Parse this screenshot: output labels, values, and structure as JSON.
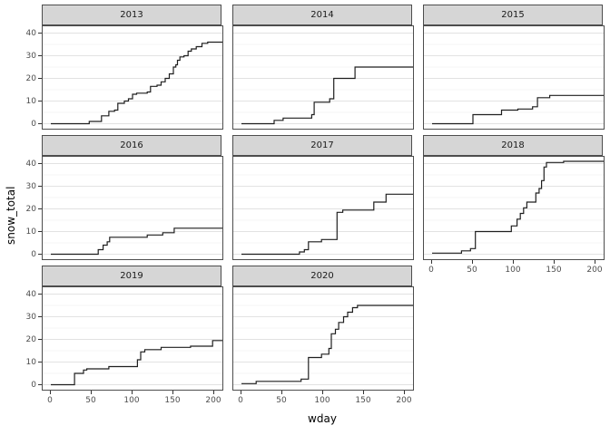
{
  "figure": {
    "x_axis_title": "wday",
    "y_axis_title": "snow_total",
    "colors": {
      "line": "#1f1f1f",
      "strip_background": "#d6d6d6",
      "panel_border": "#4d4d4d",
      "grid_major": "#e2e2e2",
      "grid_minor": "#f2f2f2",
      "tick_label": "#4d4d4d",
      "background": "#ffffff"
    }
  },
  "chart_data": {
    "type": "line",
    "subtype": "step-after",
    "title": "",
    "xlabel": "wday",
    "ylabel": "snow_total",
    "x_ticks": [
      0,
      50,
      100,
      150,
      200
    ],
    "y_ticks": [
      0,
      10,
      20,
      30,
      40
    ],
    "y_minor_ticks": [
      5,
      15,
      25,
      35
    ],
    "x_range": [
      -10,
      220
    ],
    "y_range": [
      -2.2,
      43
    ],
    "grid": "horizontal-only",
    "legend_position": "none",
    "facet_layout": {
      "ncol": 3,
      "nrow": 3
    },
    "facets": [
      {
        "label": "2013",
        "row": 0,
        "col": 0,
        "points": [
          [
            0,
            0
          ],
          [
            47,
            1
          ],
          [
            62,
            3.5
          ],
          [
            71,
            5.5
          ],
          [
            78,
            6
          ],
          [
            82,
            9
          ],
          [
            90,
            10
          ],
          [
            95,
            11
          ],
          [
            100,
            13
          ],
          [
            105,
            13.5
          ],
          [
            118,
            14
          ],
          [
            122,
            16.5
          ],
          [
            130,
            17
          ],
          [
            135,
            18.5
          ],
          [
            140,
            20
          ],
          [
            145,
            22
          ],
          [
            150,
            25
          ],
          [
            153,
            26
          ],
          [
            155,
            28
          ],
          [
            158,
            29.5
          ],
          [
            163,
            30
          ],
          [
            168,
            32
          ],
          [
            172,
            33
          ],
          [
            178,
            34
          ],
          [
            185,
            35.5
          ],
          [
            192,
            36
          ],
          [
            210,
            36
          ]
        ]
      },
      {
        "label": "2014",
        "row": 0,
        "col": 1,
        "points": [
          [
            0,
            0
          ],
          [
            40,
            1.5
          ],
          [
            51,
            2.5
          ],
          [
            86,
            4
          ],
          [
            89,
            9.5
          ],
          [
            108,
            11
          ],
          [
            113,
            20
          ],
          [
            139,
            25
          ],
          [
            210,
            25
          ]
        ]
      },
      {
        "label": "2015",
        "row": 0,
        "col": 2,
        "points": [
          [
            0,
            0
          ],
          [
            50,
            4
          ],
          [
            85,
            6
          ],
          [
            105,
            6.5
          ],
          [
            123,
            7.5
          ],
          [
            129,
            11.5
          ],
          [
            144,
            12.5
          ],
          [
            210,
            12.5
          ]
        ]
      },
      {
        "label": "2016",
        "row": 1,
        "col": 0,
        "points": [
          [
            0,
            0
          ],
          [
            58,
            2
          ],
          [
            64,
            4
          ],
          [
            69,
            5.5
          ],
          [
            72,
            7.5
          ],
          [
            118,
            8.5
          ],
          [
            137,
            9.5
          ],
          [
            151,
            11.5
          ],
          [
            210,
            11.5
          ]
        ]
      },
      {
        "label": "2017",
        "row": 1,
        "col": 1,
        "points": [
          [
            0,
            0
          ],
          [
            71,
            1
          ],
          [
            77,
            2
          ],
          [
            82,
            5.5
          ],
          [
            98,
            6.5
          ],
          [
            117,
            18.5
          ],
          [
            124,
            19.5
          ],
          [
            162,
            23
          ],
          [
            177,
            26.5
          ],
          [
            210,
            26.5
          ]
        ]
      },
      {
        "label": "2018",
        "row": 1,
        "col": 2,
        "points": [
          [
            0,
            0.5
          ],
          [
            36,
            1.5
          ],
          [
            47,
            2.5
          ],
          [
            53,
            10
          ],
          [
            97,
            12.5
          ],
          [
            104,
            15.5
          ],
          [
            108,
            18
          ],
          [
            112,
            20.5
          ],
          [
            116,
            23
          ],
          [
            127,
            27
          ],
          [
            131,
            29
          ],
          [
            134,
            32.5
          ],
          [
            137,
            38.5
          ],
          [
            140,
            40.5
          ],
          [
            161,
            41
          ],
          [
            210,
            41
          ]
        ]
      },
      {
        "label": "2019",
        "row": 2,
        "col": 0,
        "points": [
          [
            0,
            0
          ],
          [
            29,
            5
          ],
          [
            40,
            6.5
          ],
          [
            44,
            7
          ],
          [
            71,
            8
          ],
          [
            106,
            11
          ],
          [
            110,
            14.5
          ],
          [
            115,
            15.5
          ],
          [
            135,
            16.5
          ],
          [
            171,
            17
          ],
          [
            198,
            19.5
          ],
          [
            210,
            19.5
          ]
        ]
      },
      {
        "label": "2020",
        "row": 2,
        "col": 1,
        "points": [
          [
            0,
            0.5
          ],
          [
            18,
            1.5
          ],
          [
            73,
            2.5
          ],
          [
            82,
            12
          ],
          [
            98,
            13.5
          ],
          [
            107,
            16
          ],
          [
            110,
            22.5
          ],
          [
            115,
            24.5
          ],
          [
            119,
            27.5
          ],
          [
            125,
            30
          ],
          [
            130,
            32
          ],
          [
            136,
            34
          ],
          [
            142,
            35
          ],
          [
            210,
            35
          ]
        ]
      }
    ]
  }
}
